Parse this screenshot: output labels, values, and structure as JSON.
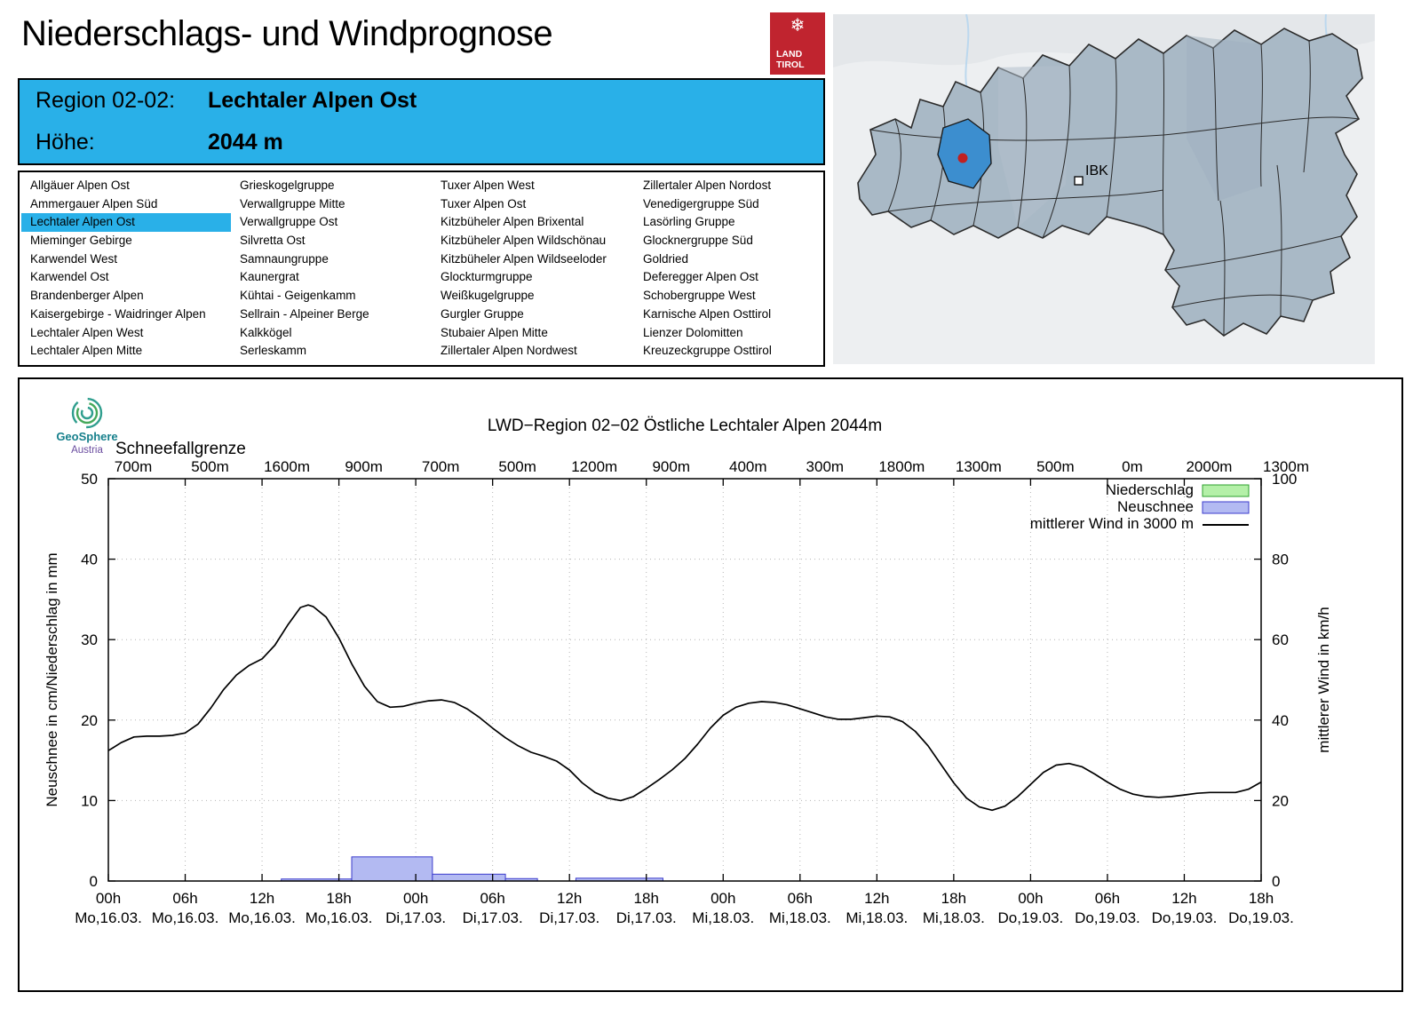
{
  "page": {
    "title": "Niederschlags- und Windprognose"
  },
  "tirol_logo": {
    "snowflake": "❄",
    "line1": "LAND",
    "line2": "TIROL"
  },
  "region_header": {
    "region_label": "Region 02-02:",
    "region_value": "Lechtaler Alpen Ost",
    "height_label": "Höhe:",
    "height_value": "2044 m"
  },
  "region_list": {
    "selected": "Lechtaler Alpen Ost",
    "columns": [
      [
        "Allgäuer Alpen Ost",
        "Ammergauer Alpen Süd",
        "Lechtaler Alpen Ost",
        "Mieminger Gebirge",
        "Karwendel West",
        "Karwendel Ost",
        "Brandenberger Alpen",
        "Kaisergebirge - Waidringer Alpen",
        "Lechtaler Alpen West",
        "Lechtaler Alpen Mitte"
      ],
      [
        "Grieskogelgruppe",
        "Verwallgruppe Mitte",
        "Verwallgruppe Ost",
        "Silvretta Ost",
        "Samnaungruppe",
        "Kaunergrat",
        "Kühtai - Geigenkamm",
        "Sellrain - Alpeiner Berge",
        "Kalkkögel",
        "Serleskamm"
      ],
      [
        "Tuxer Alpen West",
        "Tuxer Alpen Ost",
        "Kitzbüheler Alpen Brixental",
        "Kitzbüheler Alpen Wildschönau",
        "Kitzbüheler Alpen Wildseeloder",
        "Glockturmgruppe",
        "Weißkugelgruppe",
        "Gurgler Gruppe",
        "Stubaier Alpen Mitte",
        "Zillertaler Alpen Nordwest"
      ],
      [
        "Zillertaler Alpen Nordost",
        "Venedigergruppe Süd",
        "Lasörling Gruppe",
        "Glocknergruppe Süd",
        "Goldried",
        "Deferegger Alpen Ost",
        "Schobergruppe West",
        "Karnische Alpen Osttirol",
        "Lienzer Dolomitten",
        "Kreuzeckgruppe Osttirol"
      ]
    ]
  },
  "map": {
    "marker_label": "IBK",
    "highlight_color": "#3c8ecf",
    "region_color": "#a9b9c6",
    "marker_dot_color": "#c02020"
  },
  "geosphere": {
    "line1": "GeoSphere",
    "line2": "Austria"
  },
  "chart_data": {
    "type": "line+bar",
    "title": "LWD−Region 02−02 Östliche Lechtaler Alpen 2044m",
    "snowline_label": "Schneefallgrenze",
    "snowline_values": [
      "700m",
      "500m",
      "1600m",
      "900m",
      "700m",
      "500m",
      "1200m",
      "900m",
      "400m",
      "300m",
      "1800m",
      "1300m",
      "500m",
      "0m",
      "2000m",
      "1300m"
    ],
    "ylabel_left": "Neuschnee in cm/Niederschlag in mm",
    "ylabel_right": "mittlerer Wind in km/h",
    "ylim_left": [
      0,
      50
    ],
    "ylim_right": [
      0,
      100
    ],
    "x_range": [
      0,
      90
    ],
    "x_tick_step_hours": 6,
    "x_ticks": [
      {
        "hour": "00h",
        "day": "Mo,16.03."
      },
      {
        "hour": "06h",
        "day": "Mo,16.03."
      },
      {
        "hour": "12h",
        "day": "Mo,16.03."
      },
      {
        "hour": "18h",
        "day": "Mo,16.03."
      },
      {
        "hour": "00h",
        "day": "Di,17.03."
      },
      {
        "hour": "06h",
        "day": "Di,17.03."
      },
      {
        "hour": "12h",
        "day": "Di,17.03."
      },
      {
        "hour": "18h",
        "day": "Di,17.03."
      },
      {
        "hour": "00h",
        "day": "Mi,18.03."
      },
      {
        "hour": "06h",
        "day": "Mi,18.03."
      },
      {
        "hour": "12h",
        "day": "Mi,18.03."
      },
      {
        "hour": "18h",
        "day": "Mi,18.03."
      },
      {
        "hour": "00h",
        "day": "Do,19.03."
      },
      {
        "hour": "06h",
        "day": "Do,19.03."
      },
      {
        "hour": "12h",
        "day": "Do,19.03."
      },
      {
        "hour": "18h",
        "day": "Do,19.03."
      }
    ],
    "legend": [
      {
        "label": "Niederschlag",
        "type": "box",
        "fill": "#b4f0a8",
        "stroke": "#2ca02c"
      },
      {
        "label": "Neuschnee",
        "type": "box",
        "fill": "#b3baf2",
        "stroke": "#3b3bcc"
      },
      {
        "label": "mittlerer Wind in 3000 m",
        "type": "line",
        "stroke": "#000000"
      }
    ],
    "niederschlag_bars": [],
    "neuschnee_bars": [
      {
        "start": 13.5,
        "end": 19,
        "value": 0.25
      },
      {
        "start": 19,
        "end": 25.3,
        "value": 3.0
      },
      {
        "start": 25.3,
        "end": 31,
        "value": 0.85
      },
      {
        "start": 31,
        "end": 33.5,
        "value": 0.3
      },
      {
        "start": 36.5,
        "end": 43.3,
        "value": 0.35
      }
    ],
    "wind_line_left_units": [
      [
        0,
        16.2
      ],
      [
        1,
        17.2
      ],
      [
        2,
        17.9
      ],
      [
        3,
        18.0
      ],
      [
        4,
        18.0
      ],
      [
        5,
        18.1
      ],
      [
        6,
        18.4
      ],
      [
        7,
        19.5
      ],
      [
        8,
        21.5
      ],
      [
        9,
        23.8
      ],
      [
        10,
        25.6
      ],
      [
        11,
        26.8
      ],
      [
        12,
        27.6
      ],
      [
        13,
        29.3
      ],
      [
        14,
        31.8
      ],
      [
        15,
        34.0
      ],
      [
        15.6,
        34.3
      ],
      [
        16,
        34.1
      ],
      [
        17,
        32.8
      ],
      [
        18,
        30.2
      ],
      [
        19,
        27.0
      ],
      [
        20,
        24.2
      ],
      [
        21,
        22.3
      ],
      [
        22,
        21.6
      ],
      [
        23,
        21.7
      ],
      [
        24,
        22.1
      ],
      [
        25,
        22.4
      ],
      [
        26,
        22.5
      ],
      [
        27,
        22.2
      ],
      [
        28,
        21.4
      ],
      [
        29,
        20.3
      ],
      [
        30,
        19.0
      ],
      [
        31,
        17.8
      ],
      [
        32,
        16.8
      ],
      [
        33,
        16.0
      ],
      [
        34,
        15.5
      ],
      [
        35,
        14.9
      ],
      [
        36,
        13.8
      ],
      [
        37,
        12.2
      ],
      [
        38,
        11.0
      ],
      [
        39,
        10.3
      ],
      [
        40,
        10.0
      ],
      [
        41,
        10.5
      ],
      [
        42,
        11.5
      ],
      [
        43,
        12.6
      ],
      [
        44,
        13.8
      ],
      [
        45,
        15.2
      ],
      [
        46,
        17.0
      ],
      [
        47,
        19.0
      ],
      [
        48,
        20.6
      ],
      [
        49,
        21.6
      ],
      [
        50,
        22.1
      ],
      [
        51,
        22.3
      ],
      [
        52,
        22.2
      ],
      [
        53,
        21.9
      ],
      [
        54,
        21.4
      ],
      [
        55,
        20.9
      ],
      [
        56,
        20.4
      ],
      [
        57,
        20.1
      ],
      [
        58,
        20.1
      ],
      [
        59,
        20.3
      ],
      [
        60,
        20.5
      ],
      [
        61,
        20.4
      ],
      [
        62,
        19.8
      ],
      [
        63,
        18.6
      ],
      [
        64,
        16.8
      ],
      [
        65,
        14.5
      ],
      [
        66,
        12.2
      ],
      [
        67,
        10.3
      ],
      [
        68,
        9.2
      ],
      [
        69,
        8.8
      ],
      [
        70,
        9.3
      ],
      [
        71,
        10.5
      ],
      [
        72,
        12.0
      ],
      [
        73,
        13.5
      ],
      [
        74,
        14.4
      ],
      [
        75,
        14.6
      ],
      [
        76,
        14.2
      ],
      [
        77,
        13.3
      ],
      [
        78,
        12.3
      ],
      [
        79,
        11.4
      ],
      [
        80,
        10.8
      ],
      [
        81,
        10.5
      ],
      [
        82,
        10.4
      ],
      [
        83,
        10.5
      ],
      [
        84,
        10.7
      ],
      [
        85,
        10.9
      ],
      [
        86,
        11.0
      ],
      [
        87,
        11.0
      ],
      [
        88,
        11.0
      ],
      [
        89,
        11.4
      ],
      [
        90,
        12.3
      ]
    ]
  }
}
